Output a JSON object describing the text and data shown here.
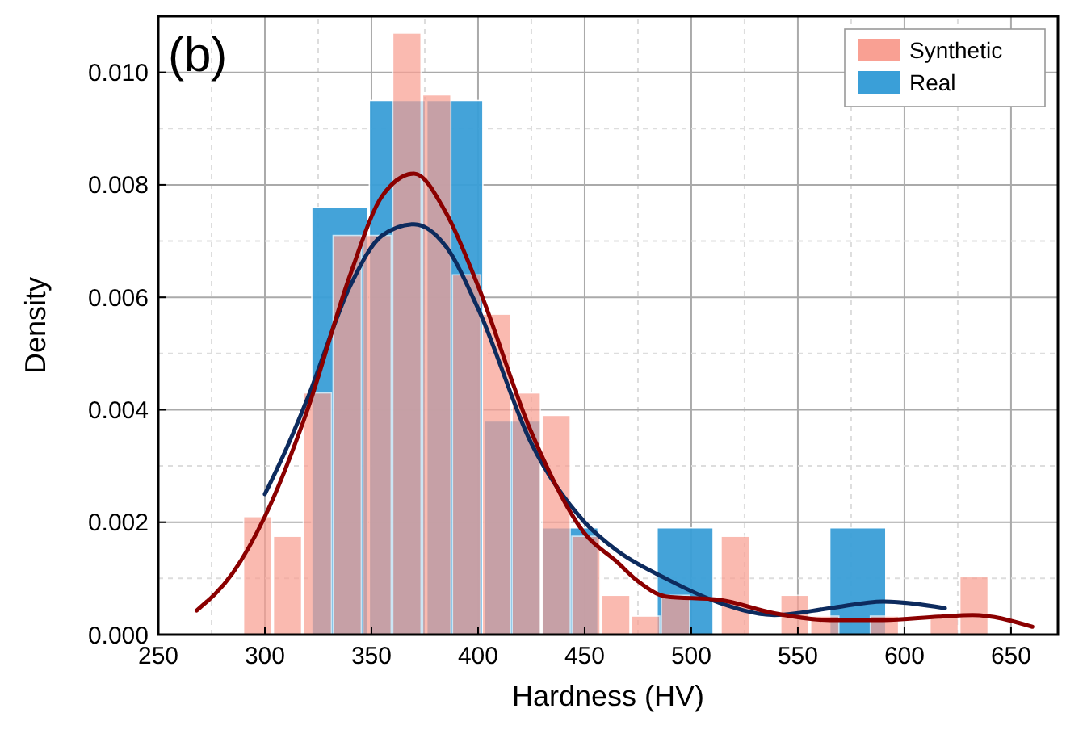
{
  "chart_data": {
    "type": "histogram",
    "xlabel": "Hardness (HV)",
    "ylabel": "Density",
    "annotations": [
      "(b)"
    ],
    "xlim": [
      250,
      672
    ],
    "xticks": [
      250,
      300,
      350,
      400,
      450,
      500,
      550,
      600,
      650
    ],
    "ylim": [
      0,
      0.011
    ],
    "yticks": [
      {
        "value": 0,
        "label": "0.000"
      },
      {
        "value": 0.002,
        "label": "0.002"
      },
      {
        "value": 0.004,
        "label": "0.004"
      },
      {
        "value": 0.006,
        "label": "0.006"
      },
      {
        "value": 0.008,
        "label": "0.008"
      },
      {
        "value": 0.01,
        "label": "0.010"
      }
    ],
    "grid": true,
    "legend": "top right",
    "series": [
      {
        "name": "Real",
        "color": "#3a9fd8",
        "bins": [
          322,
          349,
          376,
          403,
          430,
          457,
          484,
          511,
          538,
          565,
          592,
          619
        ],
        "values": [
          0.0076,
          0.0095,
          0.0095,
          0.0038,
          0.0019,
          0,
          0.0019,
          0,
          0,
          0.0019,
          0
        ]
      },
      {
        "name": "Synthetic",
        "color": "#f9a093",
        "bins": [
          290,
          304,
          318,
          332,
          346,
          360,
          374,
          388,
          402,
          416,
          430,
          444,
          458,
          472,
          486,
          500,
          514,
          528,
          542,
          556,
          570,
          584,
          598,
          612,
          626,
          640
        ],
        "values": [
          0.0021,
          0.00175,
          0.0043,
          0.0071,
          0.0071,
          0.0107,
          0.0096,
          0.0064,
          0.0057,
          0.0043,
          0.0039,
          0.00175,
          0.0007,
          0.00033,
          0.0007,
          0,
          0.00175,
          0,
          0.0007,
          0.00033,
          0,
          0.00033,
          0,
          0.0003,
          0.00103
        ]
      },
      {
        "type": "line",
        "color": "#0d2b5e",
        "x": [
          300,
          310,
          320,
          340,
          355,
          370,
          385,
          400,
          425,
          450,
          465,
          488,
          513,
          539,
          565,
          590,
          619
        ],
        "values": [
          0.0025,
          0.0033,
          0.0042,
          0.0062,
          0.0071,
          0.0073,
          0.0069,
          0.0058,
          0.0034,
          0.002,
          0.0015,
          0.001,
          0.00057,
          0.00035,
          0.00047,
          0.00059,
          0.00047
        ]
      },
      {
        "type": "line",
        "color": "#8b0000",
        "x": [
          268,
          285,
          300,
          320,
          340,
          355,
          370,
          385,
          400,
          425,
          450,
          465,
          475,
          488,
          513,
          539,
          565,
          590,
          616,
          632,
          660
        ],
        "values": [
          0.00043,
          0.0011,
          0.0021,
          0.004,
          0.0064,
          0.0078,
          0.0082,
          0.0075,
          0.0062,
          0.0036,
          0.0018,
          0.0013,
          0.00095,
          0.00068,
          0.00062,
          0.00038,
          0.00026,
          0.00026,
          0.00032,
          0.00035,
          0.00014
        ]
      }
    ]
  }
}
